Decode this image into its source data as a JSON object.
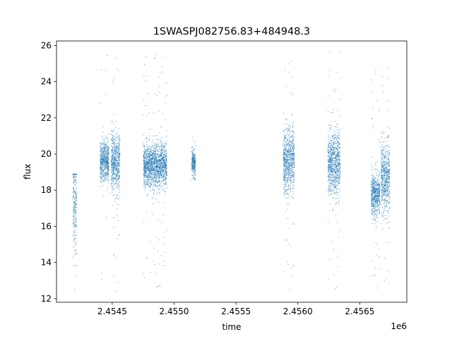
{
  "chart_data": {
    "type": "scatter",
    "title": "1SWASPJ082756.83+484948.3",
    "xlabel": "time",
    "ylabel": "flux",
    "x_offset_label": "1e6",
    "xlim": [
      2.45405,
      2.45688
    ],
    "ylim": [
      11.8,
      26.25
    ],
    "x_ticks": [
      2.4545,
      2.455,
      2.4555,
      2.456,
      2.4565
    ],
    "x_tick_labels": [
      "2.4545",
      "2.4550",
      "2.4555",
      "2.4560",
      "2.4565"
    ],
    "y_ticks": [
      12,
      14,
      16,
      18,
      20,
      22,
      24,
      26
    ],
    "y_tick_labels": [
      "12",
      "14",
      "16",
      "18",
      "20",
      "22",
      "24",
      "26"
    ],
    "grid": false,
    "marker_color": "#1f77b4",
    "segments": [
      {
        "x_start": 2.45418,
        "x_end": 2.45421,
        "center": 17.5,
        "spread": 1.6,
        "y_min": 12.5,
        "y_max": 18.9
      },
      {
        "x_start": 2.4544,
        "x_end": 2.45447,
        "center": 19.6,
        "spread": 0.55,
        "y_min": 12.6,
        "y_max": 25.8
      },
      {
        "x_start": 2.45449,
        "x_end": 2.45456,
        "center": 19.5,
        "spread": 0.8,
        "y_min": 12.4,
        "y_max": 26.0
      },
      {
        "x_start": 2.45475,
        "x_end": 2.45494,
        "center": 19.4,
        "spread": 0.6,
        "y_min": 12.5,
        "y_max": 25.7
      },
      {
        "x_start": 2.45514,
        "x_end": 2.45517,
        "center": 19.5,
        "spread": 0.35,
        "y_min": 18.6,
        "y_max": 21.2
      },
      {
        "x_start": 2.45588,
        "x_end": 2.45597,
        "center": 19.7,
        "spread": 0.9,
        "y_min": 12.3,
        "y_max": 25.4
      },
      {
        "x_start": 2.45624,
        "x_end": 2.45634,
        "center": 19.5,
        "spread": 0.85,
        "y_min": 12.4,
        "y_max": 26.0
      },
      {
        "x_start": 2.45659,
        "x_end": 2.45666,
        "center": 17.8,
        "spread": 0.6,
        "y_min": 12.4,
        "y_max": 24.8
      },
      {
        "x_start": 2.45667,
        "x_end": 2.45674,
        "center": 18.7,
        "spread": 1.0,
        "y_min": 12.6,
        "y_max": 25.0
      }
    ]
  }
}
